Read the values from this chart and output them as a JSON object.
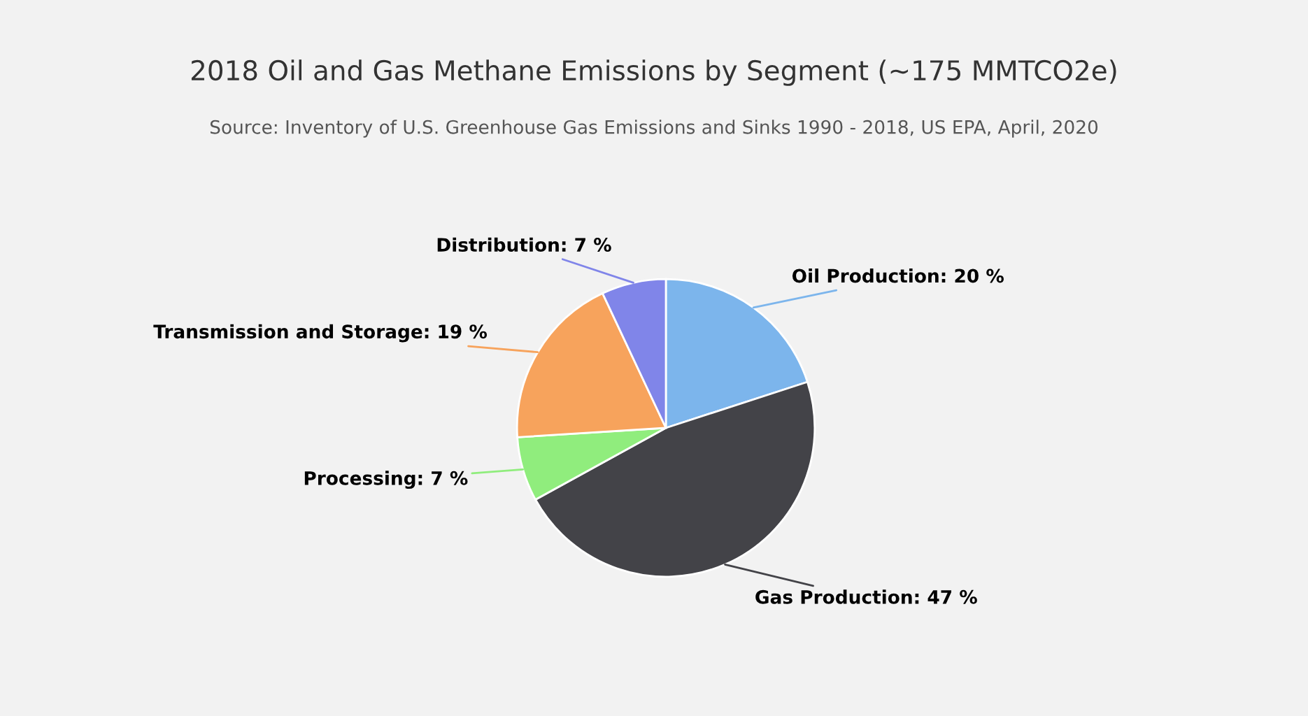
{
  "chart_data": {
    "type": "pie",
    "title": "2018 Oil and Gas Methane Emissions by Segment (~175 MMTCO2e)",
    "subtitle": "Source: Inventory of U.S. Greenhouse Gas Emissions and Sinks 1990 - 2018, US EPA, April, 2020",
    "categories": [
      "Oil Production",
      "Gas Production",
      "Processing",
      "Transmission and Storage",
      "Distribution"
    ],
    "values": [
      20,
      47,
      7,
      19,
      7
    ],
    "value_labels": [
      "20 %",
      "47 %",
      "7 %",
      "19 %",
      "7 %"
    ],
    "colors": [
      "#7cb5ec",
      "#434348",
      "#90ed7d",
      "#f7a35c",
      "#8085e9"
    ],
    "legend": false
  }
}
